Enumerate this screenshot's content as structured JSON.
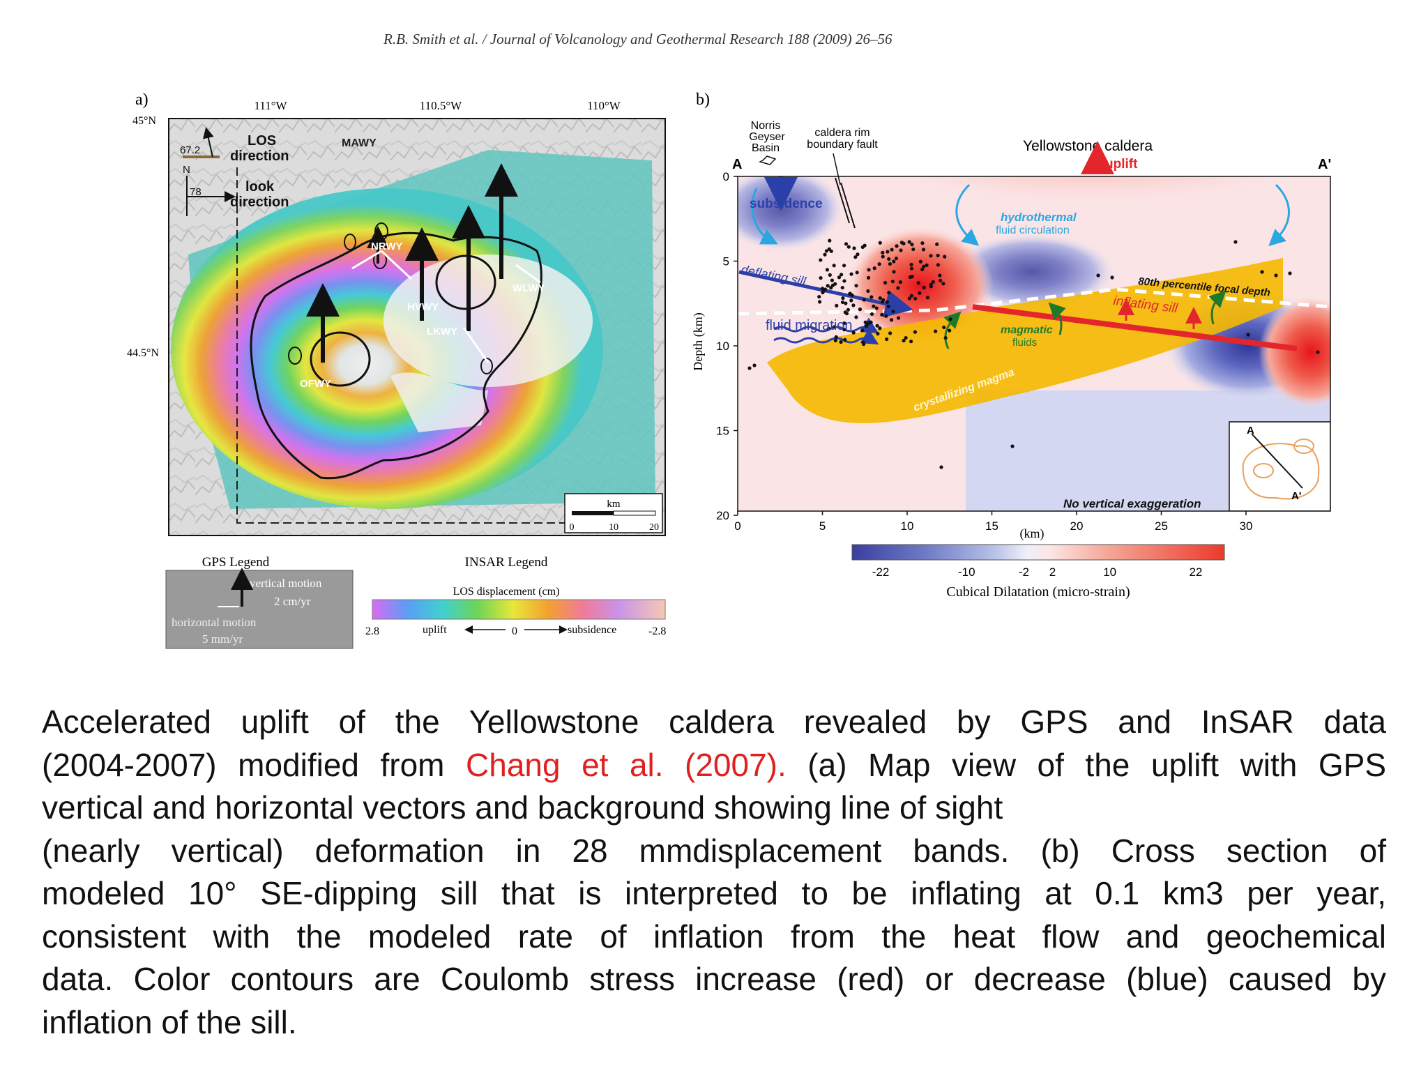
{
  "header": "R.B. Smith et al. / Journal of Volcanology and Geothermal Research 188 (2009) 26–56",
  "panel_a": {
    "label": "a)",
    "lon_ticks": [
      "111°W",
      "110.5°W",
      "110°W"
    ],
    "lat_ticks": [
      "45°N",
      "44.5°N"
    ],
    "los_angle": "67.2",
    "los_label_1": "LOS",
    "los_label_2": "direction",
    "north": "N",
    "look_angle": "78",
    "look_label_1": "look",
    "look_label_2": "direction",
    "stations": [
      "MAWY",
      "NRWY",
      "HVWY",
      "LKWY",
      "WLWY",
      "OFWY"
    ],
    "scale_title": "km",
    "scale_ticks": [
      "0",
      "10",
      "20"
    ],
    "gps_legend_title": "GPS Legend",
    "gps_vertical": "vertical motion",
    "gps_vertical_rate": "2 cm/yr",
    "gps_horizontal": "horizontal motion",
    "gps_horizontal_rate": "5 mm/yr",
    "insar_legend_title": "INSAR Legend",
    "insar_bar_title": "LOS displacement (cm)",
    "insar_left": "2.8",
    "insar_uplift": "uplift",
    "insar_zero": "0",
    "insar_subsidence": "subsidence",
    "insar_right": "-2.8"
  },
  "panel_b": {
    "label": "b)",
    "endpoint_left": "A",
    "endpoint_right": "A'",
    "norris_1": "Norris",
    "norris_2": "Geyser",
    "norris_3": "Basin",
    "fault_1": "caldera rim",
    "fault_2": "boundary fault",
    "caldera_title": "Yellowstone caldera",
    "uplift": "uplift",
    "subsidence": "subsidence",
    "hydro_1": "hydrothermal",
    "hydro_2": "fluid circulation",
    "deflating": "deflating sill",
    "fluid_migration": "fluid migration",
    "magmatic_1": "magmatic",
    "magmatic_2": "fluids",
    "inflating": "inflating sill",
    "focal_depth": "80th percentile focal depth",
    "crystallizing": "crystallizing magma",
    "no_exaggeration": "No vertical exaggeration",
    "inset_a": "A",
    "inset_a_prime": "A'",
    "y_axis_label": "Depth (km)",
    "y_ticks": [
      "0",
      "5",
      "10",
      "15",
      "20"
    ],
    "x_ticks": [
      "0",
      "5",
      "10",
      "15",
      "20",
      "25",
      "30"
    ],
    "x_unit": "(km)",
    "colorbar_ticks": [
      "-22",
      "-10",
      "-2",
      "2",
      "10",
      "22"
    ],
    "colorbar_title": "Cubical Dilatation (micro-strain)"
  },
  "caption": {
    "line1": "Accelerated uplift of the Yellowstone caldera revealed by GPS and InSAR data",
    "line2_before": "(2004-2007) modified from ",
    "line2_ref": "Chang et al. (2007).",
    "line2_after": " (a) Map view of the uplift with GPS",
    "line3": "vertical and horizontal vectors and background showing line of sight",
    "line4": "(nearly vertical) deformation in 28 mmdisplacement bands. (b) Cross section of",
    "line5": "modeled 10° SE-dipping sill that is interpreted to be inflating at 0.1 km3 per year,",
    "line6": "consistent with the modeled rate of inflation from the heat flow and geochemical",
    "line7": "data. Color contours are Coulomb stress increase (red) or decrease (blue) caused by",
    "line8": "inflation of the sill."
  },
  "colors": {
    "caption_ref": "#e02020",
    "subsidence_blue": "#2b3fa8",
    "uplift_red": "#e3262b",
    "magma_yellow": "#f5b800",
    "hydro_cyan": "#2aa7e0"
  }
}
